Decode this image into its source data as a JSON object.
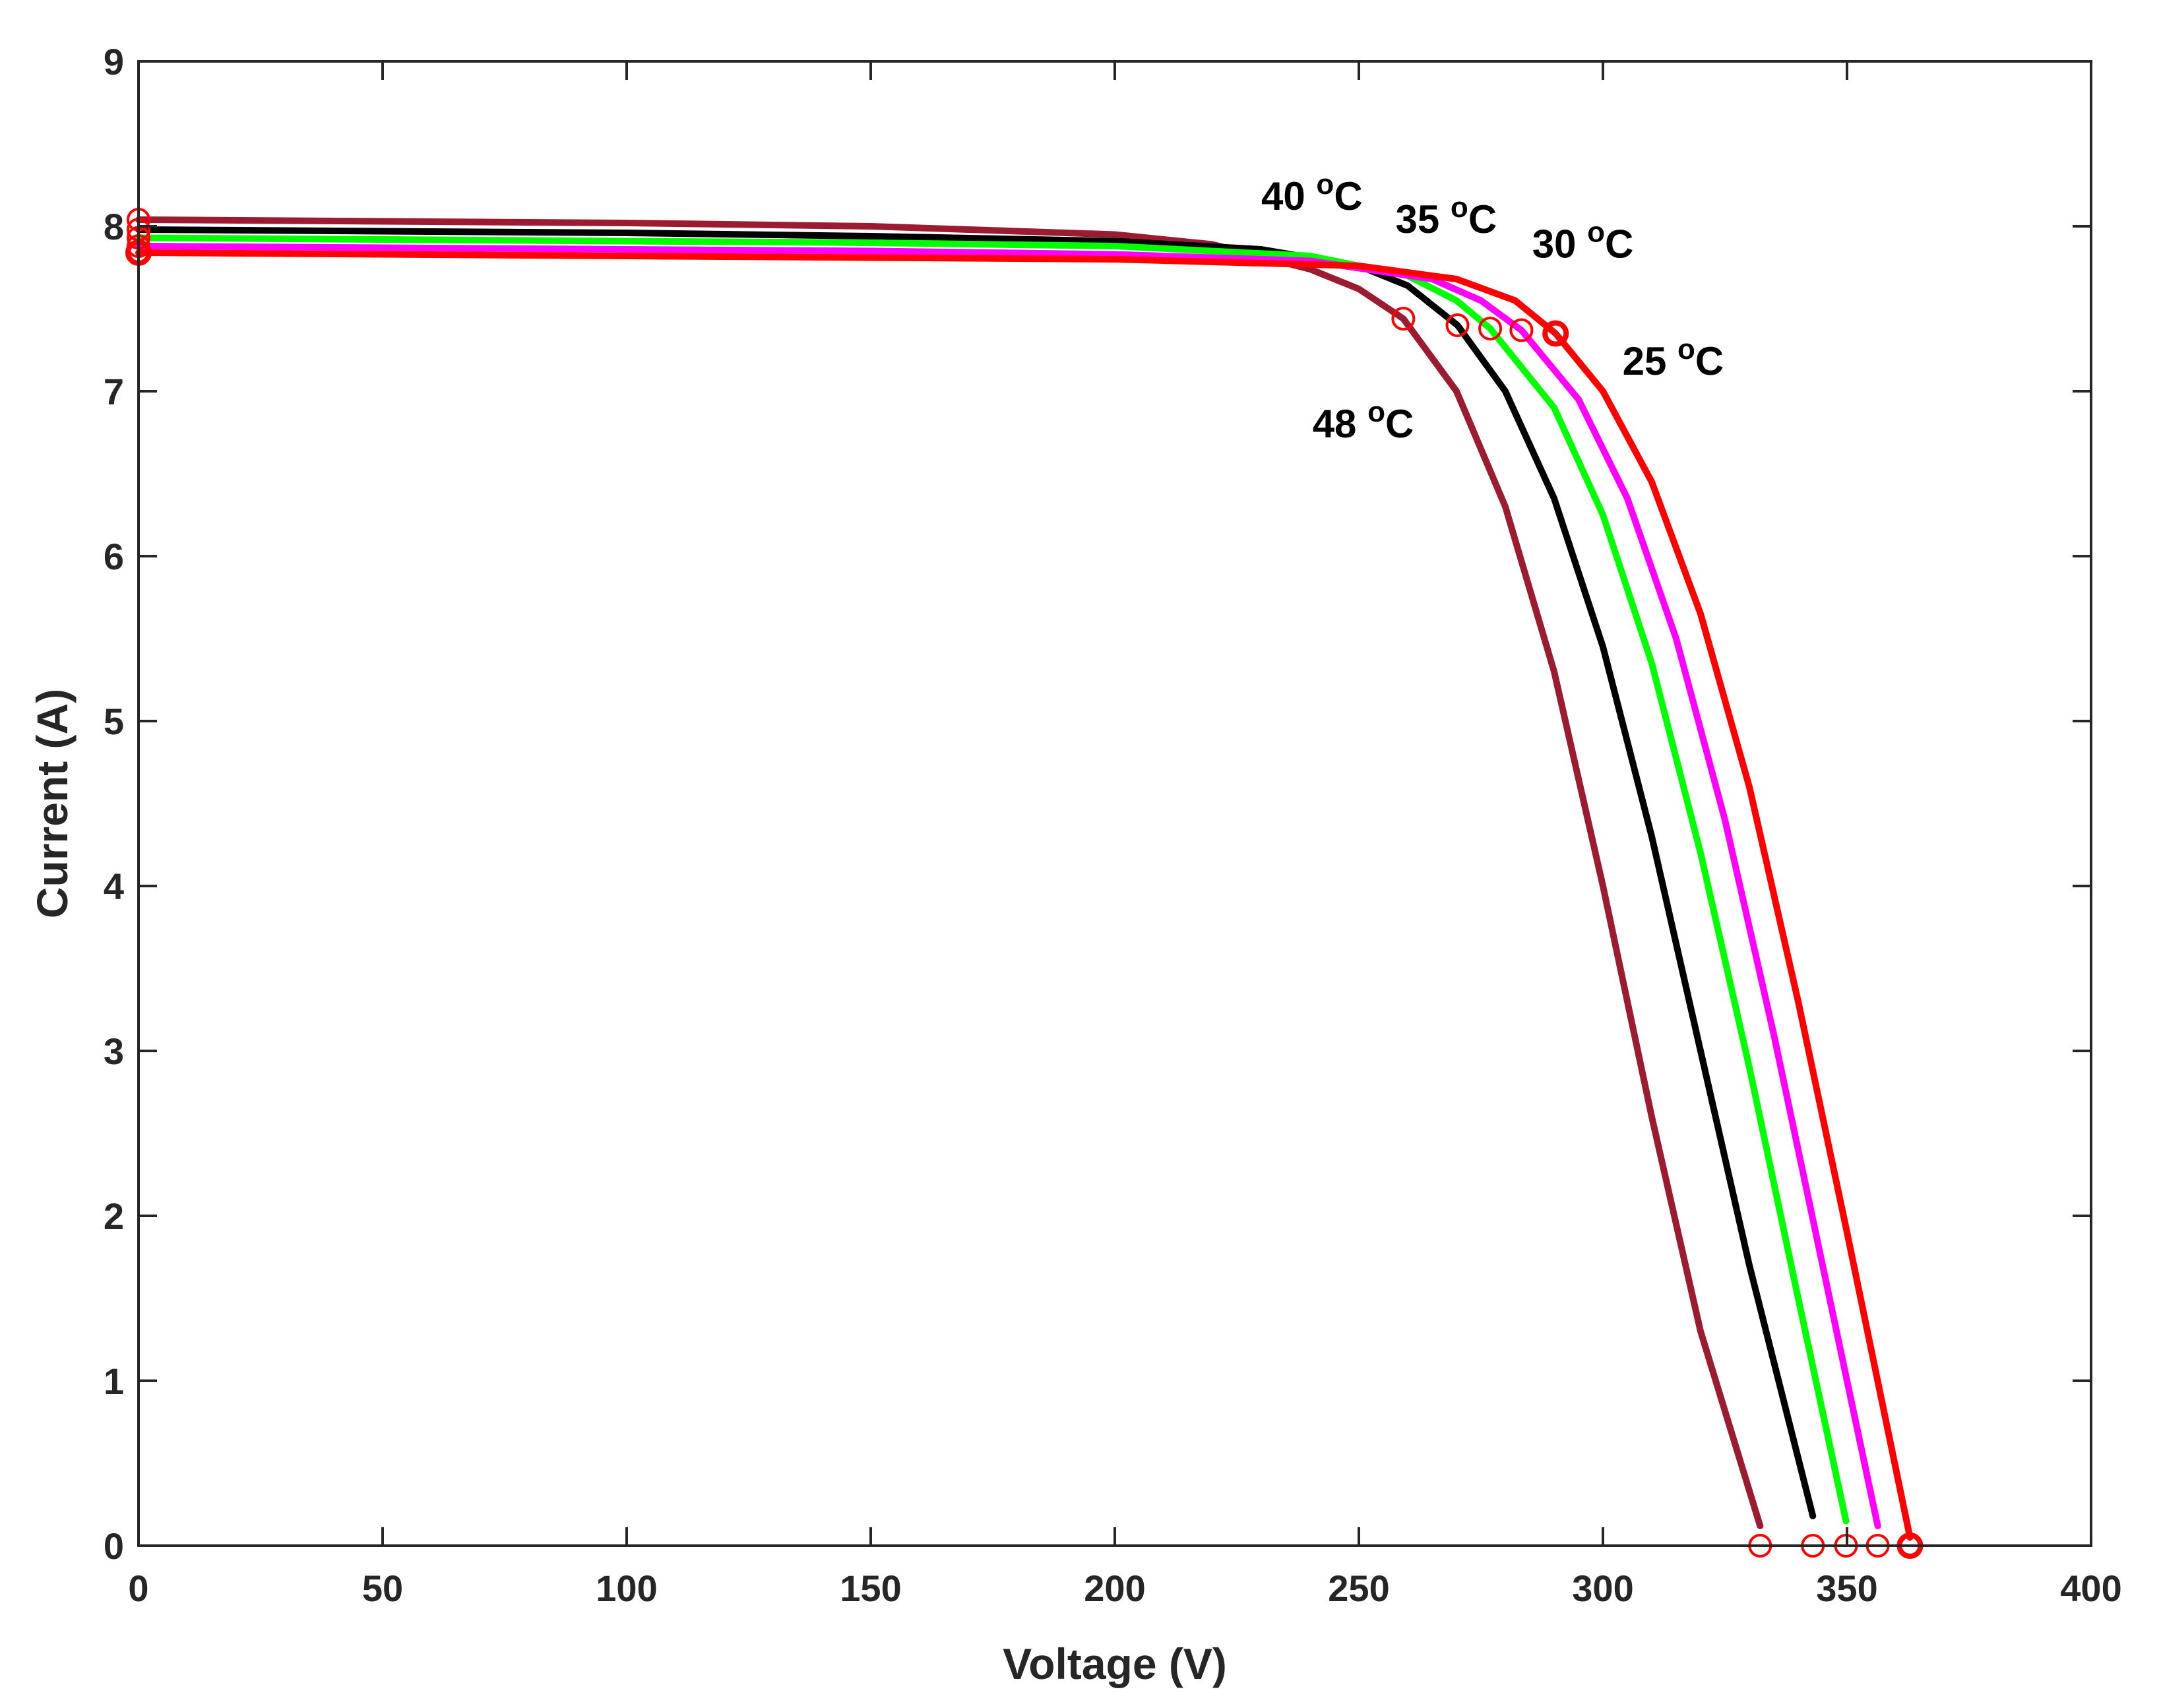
{
  "chart_data": {
    "type": "line",
    "title": "",
    "xlabel": "Voltage (V)",
    "ylabel": "Current (A)",
    "xlim": [
      0,
      400
    ],
    "ylim": [
      0,
      9
    ],
    "xticks": [
      0,
      50,
      100,
      150,
      200,
      250,
      300,
      350,
      400
    ],
    "yticks": [
      0,
      1,
      2,
      3,
      4,
      5,
      6,
      7,
      8,
      9
    ],
    "grid": false,
    "marker_color": "#ff0000",
    "series": [
      {
        "name": "48 oC",
        "color": "#9b1b30",
        "isc": 8.04,
        "voc": 332.2,
        "vmp": 259.1,
        "imp": 7.44,
        "x": [
          0,
          50,
          100,
          150,
          200,
          220,
          240,
          250,
          259.1,
          270,
          280,
          290,
          300,
          310,
          320,
          332.2
        ],
        "y": [
          8.04,
          8.03,
          8.02,
          8.0,
          7.95,
          7.89,
          7.74,
          7.62,
          7.44,
          7.0,
          6.3,
          5.3,
          4.0,
          2.6,
          1.3,
          0.12
        ]
      },
      {
        "name": "40 oC",
        "color": "#000000",
        "isc": 7.98,
        "voc": 343.0,
        "vmp": 270.2,
        "imp": 7.4,
        "x": [
          0,
          50,
          100,
          150,
          200,
          230,
          250,
          260,
          270.2,
          280,
          290,
          300,
          310,
          320,
          330,
          343.0
        ],
        "y": [
          7.98,
          7.97,
          7.96,
          7.94,
          7.91,
          7.86,
          7.76,
          7.64,
          7.4,
          7.0,
          6.35,
          5.45,
          4.3,
          3.0,
          1.7,
          0.18
        ]
      },
      {
        "name": "35 oC",
        "color": "#00ff00",
        "isc": 7.93,
        "voc": 349.8,
        "vmp": 276.9,
        "imp": 7.38,
        "x": [
          0,
          50,
          100,
          150,
          200,
          240,
          260,
          270,
          276.9,
          290,
          300,
          310,
          320,
          330,
          340,
          349.8
        ],
        "y": [
          7.93,
          7.92,
          7.91,
          7.9,
          7.88,
          7.82,
          7.7,
          7.55,
          7.38,
          6.9,
          6.25,
          5.35,
          4.2,
          2.9,
          1.5,
          0.15
        ]
      },
      {
        "name": "30 oC",
        "color": "#ff00ff",
        "isc": 7.88,
        "voc": 356.3,
        "vmp": 283.3,
        "imp": 7.37,
        "x": [
          0,
          50,
          100,
          150,
          200,
          240,
          265,
          275,
          283.3,
          295,
          305,
          315,
          325,
          335,
          345,
          356.3
        ],
        "y": [
          7.88,
          7.87,
          7.86,
          7.85,
          7.83,
          7.79,
          7.68,
          7.55,
          7.37,
          6.95,
          6.35,
          5.5,
          4.4,
          3.1,
          1.7,
          0.12
        ]
      },
      {
        "name": "25 oC",
        "color": "#ff0000",
        "isc": 7.84,
        "voc": 362.9,
        "vmp": 290.3,
        "imp": 7.35,
        "x": [
          0,
          50,
          100,
          150,
          200,
          250,
          270,
          282,
          290.3,
          300,
          310,
          320,
          330,
          340,
          350,
          362.9
        ],
        "y": [
          7.84,
          7.83,
          7.82,
          7.81,
          7.8,
          7.76,
          7.68,
          7.55,
          7.35,
          7.0,
          6.45,
          5.65,
          4.6,
          3.3,
          1.9,
          0.05
        ]
      }
    ],
    "annotations": [
      {
        "label": "40",
        "unit": "C",
        "superscript": "o",
        "x": 230,
        "y": 8.1
      },
      {
        "label": "35",
        "unit": "C",
        "superscript": "o",
        "x": 257.5,
        "y": 7.96
      },
      {
        "label": "30",
        "unit": "C",
        "superscript": "o",
        "x": 285.5,
        "y": 7.81
      },
      {
        "label": "25",
        "unit": "C",
        "superscript": "o",
        "x": 304,
        "y": 7.1
      },
      {
        "label": "48",
        "unit": "C",
        "superscript": "o",
        "x": 240.5,
        "y": 6.72
      }
    ]
  }
}
